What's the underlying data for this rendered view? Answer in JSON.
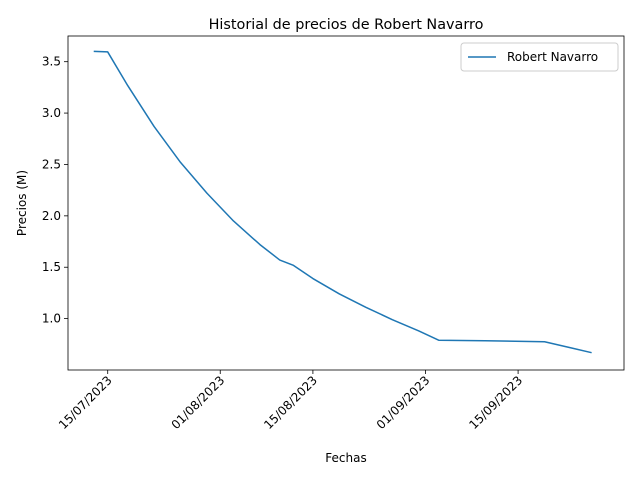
{
  "chart_data": {
    "type": "line",
    "title": "Historial de precios de Robert Navarro",
    "xlabel": "Fechas",
    "ylabel": "Precios (M)",
    "x_ticks": [
      "15/07/2023",
      "01/08/2023",
      "15/08/2023",
      "01/09/2023",
      "15/09/2023"
    ],
    "y_ticks": [
      "1.0",
      "1.5",
      "2.0",
      "2.5",
      "3.0",
      "3.5"
    ],
    "xlim": [
      "2023-07-09",
      "2023-10-01"
    ],
    "ylim": [
      0.5,
      3.75
    ],
    "grid": false,
    "legend_position": "top-right",
    "series": [
      {
        "name": "Robert Navarro",
        "color": "#1f77b4",
        "points": [
          {
            "x": "2023-07-13",
            "y": 3.6
          },
          {
            "x": "2023-07-15",
            "y": 3.595
          },
          {
            "x": "2023-07-18",
            "y": 3.27
          },
          {
            "x": "2023-07-22",
            "y": 2.87
          },
          {
            "x": "2023-07-26",
            "y": 2.52
          },
          {
            "x": "2023-07-30",
            "y": 2.22
          },
          {
            "x": "2023-08-03",
            "y": 1.95
          },
          {
            "x": "2023-08-07",
            "y": 1.72
          },
          {
            "x": "2023-08-10",
            "y": 1.57
          },
          {
            "x": "2023-08-12",
            "y": 1.52
          },
          {
            "x": "2023-08-15",
            "y": 1.39
          },
          {
            "x": "2023-08-19",
            "y": 1.24
          },
          {
            "x": "2023-08-23",
            "y": 1.11
          },
          {
            "x": "2023-08-27",
            "y": 0.99
          },
          {
            "x": "2023-08-31",
            "y": 0.88
          },
          {
            "x": "2023-09-03",
            "y": 0.79
          },
          {
            "x": "2023-09-10",
            "y": 0.785
          },
          {
            "x": "2023-09-19",
            "y": 0.775
          },
          {
            "x": "2023-09-23",
            "y": 0.715
          },
          {
            "x": "2023-09-26",
            "y": 0.67
          }
        ]
      }
    ]
  }
}
